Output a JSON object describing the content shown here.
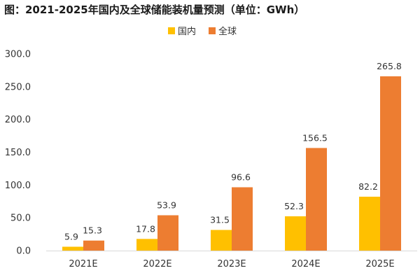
{
  "chart_data": {
    "type": "bar",
    "title": "图：2021-2025年国内及全球储能装机量预测（单位：GWh）",
    "categories": [
      "2021E",
      "2022E",
      "2023E",
      "2024E",
      "2025E"
    ],
    "series": [
      {
        "name": "国内",
        "color": "#FFC000",
        "values": [
          5.9,
          17.8,
          31.5,
          52.3,
          82.2
        ]
      },
      {
        "name": "全球",
        "color": "#ED7D31",
        "values": [
          15.3,
          53.9,
          96.6,
          156.5,
          265.8
        ]
      }
    ],
    "ylim": [
      0,
      300
    ],
    "yticks": [
      "0.0",
      "50.0",
      "100.0",
      "150.0",
      "200.0",
      "250.0",
      "300.0"
    ],
    "xlabel": "",
    "ylabel": "",
    "legend_position": "top-center",
    "grid": false
  }
}
